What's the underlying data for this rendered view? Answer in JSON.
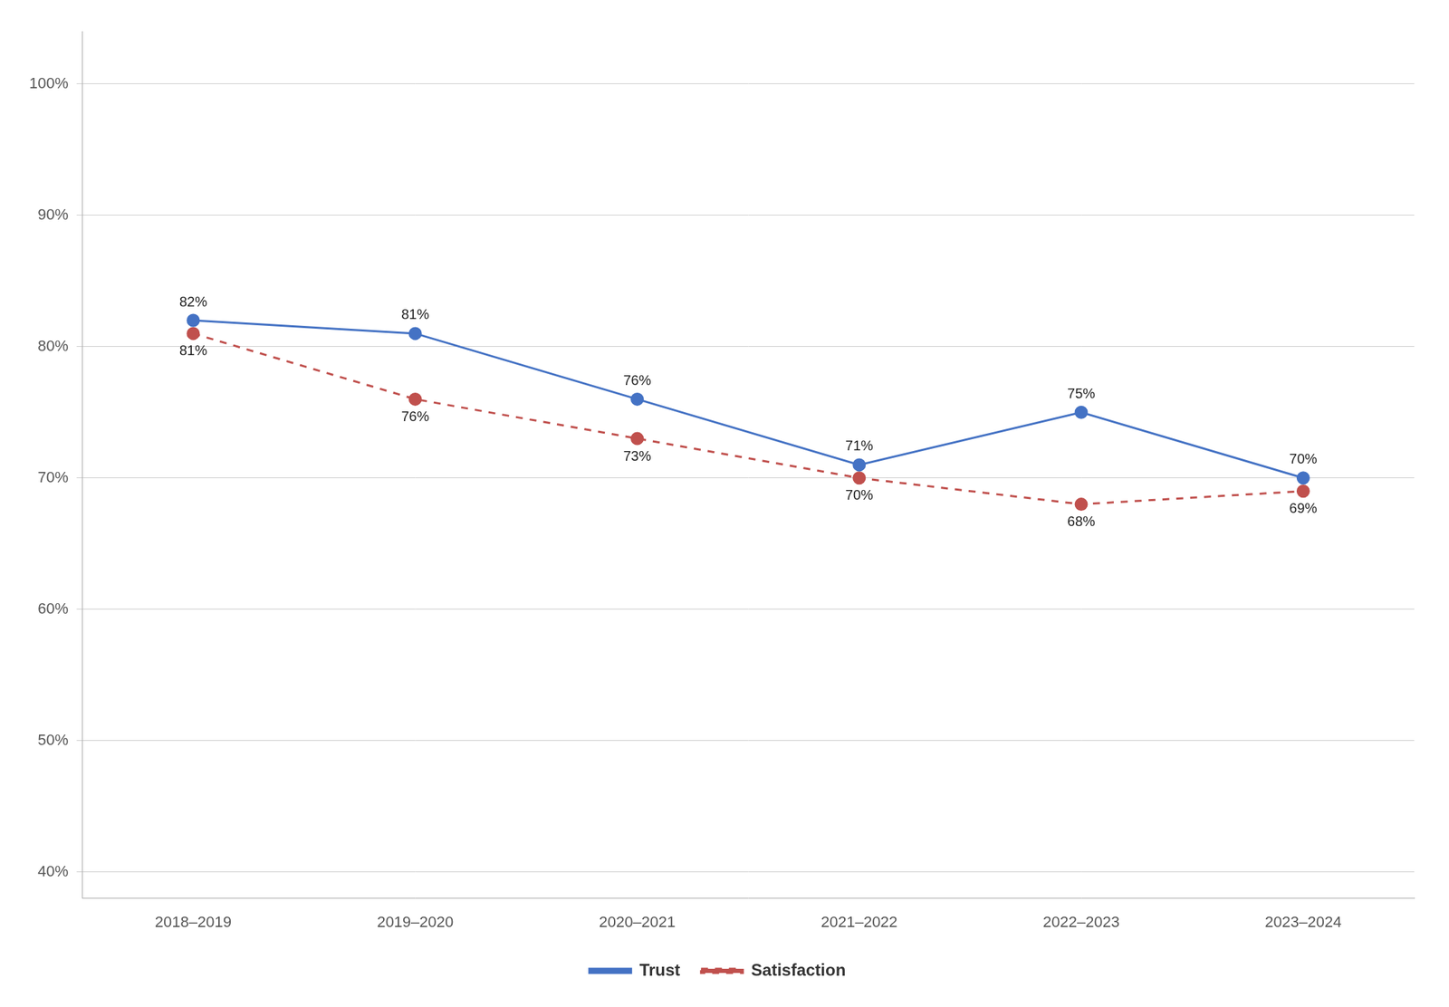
{
  "chart_data": {
    "type": "line",
    "categories": [
      "2018–2019",
      "2019–2020",
      "2020–2021",
      "2021–2022",
      "2022–2023",
      "2023–2024"
    ],
    "series": [
      {
        "name": "Trust",
        "color": "#4472C4",
        "values": [
          82,
          81,
          76,
          71,
          75,
          70
        ],
        "value_labels": [
          "82%",
          "81%",
          "76%",
          "71%",
          "75%",
          "70%"
        ],
        "line_style": "solid",
        "marker": "circle"
      },
      {
        "name": "Satisfaction",
        "color": "#C0504D",
        "values": [
          81,
          76,
          73,
          70,
          68,
          69
        ],
        "value_labels": [
          "81%",
          "76%",
          "73%",
          "70%",
          "68%",
          "69%"
        ],
        "line_style": "dashed",
        "marker": "circle"
      }
    ],
    "ylim": [
      38,
      104
    ],
    "yticks": [
      {
        "value": 40,
        "label": "40%"
      },
      {
        "value": 50,
        "label": "50%"
      },
      {
        "value": 60,
        "label": "60%"
      },
      {
        "value": 70,
        "label": "70%"
      },
      {
        "value": 80,
        "label": "80%"
      },
      {
        "value": 90,
        "label": "90%"
      },
      {
        "value": 100,
        "label": "100%"
      }
    ],
    "grid": true,
    "legend": "bottom",
    "data_labels": true
  }
}
